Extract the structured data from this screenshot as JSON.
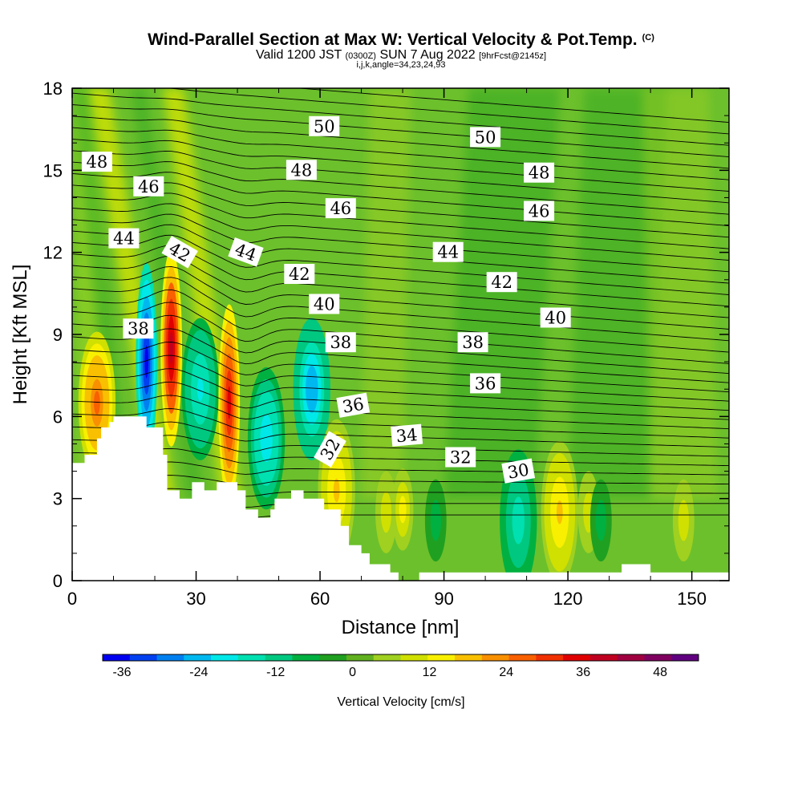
{
  "header": {
    "title": "Wind-Parallel Section at Max W: Vertical Velocity & Pot.Temp.",
    "title_mark": "(C)",
    "valid_prefix": "Valid 1200 JST",
    "valid_utc": "(0300Z)",
    "valid_date": "SUN 7 Aug 2022",
    "forecast": "[9hrFcst@2145z]",
    "indices": "i,j,k,angle=34,23,24,93"
  },
  "chart_data": {
    "type": "heatmap",
    "xlabel": "Distance [nm]",
    "ylabel": "Height [Kft MSL]",
    "xlim": [
      0,
      159
    ],
    "ylim": [
      0,
      18
    ],
    "xticks": [
      0,
      30,
      60,
      90,
      120,
      150
    ],
    "yticks": [
      0,
      3,
      6,
      9,
      12,
      15,
      18
    ],
    "colorbar": {
      "label": "Vertical Velocity [cm/s]",
      "ticks": [
        -36,
        -24,
        -12,
        0,
        12,
        24,
        36,
        48
      ],
      "min": -39,
      "max": 54,
      "colors": [
        "#0000f0",
        "#0040f0",
        "#0080f0",
        "#00b8f0",
        "#00e8e8",
        "#00e0b0",
        "#00c880",
        "#00b040",
        "#20a020",
        "#60b020",
        "#a0d020",
        "#d0e000",
        "#f8f000",
        "#f8c000",
        "#f89000",
        "#f86000",
        "#f03000",
        "#e00000",
        "#c00020",
        "#a00040",
        "#800060",
        "#600080"
      ]
    },
    "velocity_cells": [
      {
        "x": 6,
        "y": 6.5,
        "w": 26
      },
      {
        "x": 18,
        "y": 8,
        "w": -38
      },
      {
        "x": 24,
        "y": 8.5,
        "w": 40
      },
      {
        "x": 31,
        "y": 7,
        "w": -20
      },
      {
        "x": 38,
        "y": 6.5,
        "w": 36
      },
      {
        "x": 47,
        "y": 5.2,
        "w": -22
      },
      {
        "x": 58,
        "y": 7,
        "w": -26
      },
      {
        "x": 64,
        "y": 3.3,
        "w": 16
      },
      {
        "x": 76,
        "y": 2.5,
        "w": 10
      },
      {
        "x": 80,
        "y": 2.6,
        "w": 14
      },
      {
        "x": 88,
        "y": 2.2,
        "w": -8
      },
      {
        "x": 108,
        "y": 2.2,
        "w": -16
      },
      {
        "x": 118,
        "y": 2.5,
        "w": 18
      },
      {
        "x": 125,
        "y": 2.5,
        "w": 10
      },
      {
        "x": 128,
        "y": 2.2,
        "w": -8
      },
      {
        "x": 148,
        "y": 2.2,
        "w": 10
      }
    ],
    "terrain": {
      "x": [
        0,
        3,
        3,
        6,
        6,
        7,
        7,
        9,
        9,
        10,
        10,
        12,
        12,
        13,
        13,
        18,
        18,
        22,
        22,
        23,
        23,
        26,
        26,
        29,
        29,
        32,
        32,
        35,
        35,
        40,
        40,
        42,
        42,
        45,
        45,
        48,
        48,
        49,
        49,
        53,
        53,
        56,
        56,
        61,
        61,
        65,
        65,
        67,
        67,
        70,
        70,
        72,
        72,
        77,
        77,
        79,
        79,
        84,
        84,
        89,
        89,
        133,
        133,
        140,
        140,
        159
      ],
      "y": [
        4.3,
        4.3,
        4.6,
        4.6,
        5.2,
        5.2,
        5.6,
        5.6,
        5.8,
        5.8,
        6.0,
        6.0,
        6.0,
        6.0,
        6.0,
        6.0,
        5.6,
        5.6,
        4.6,
        4.6,
        3.3,
        3.3,
        3.0,
        3.0,
        3.6,
        3.6,
        3.3,
        3.3,
        3.6,
        3.6,
        3.3,
        3.3,
        2.6,
        2.6,
        2.3,
        2.3,
        2.6,
        2.6,
        3.0,
        3.0,
        3.3,
        3.3,
        3.0,
        3.0,
        2.6,
        2.6,
        2.0,
        2.0,
        1.3,
        1.3,
        1.0,
        1.0,
        0.6,
        0.6,
        0.3,
        0.3,
        0.0,
        0.0,
        0.3,
        0.3,
        0.3,
        0.3,
        0.6,
        0.6,
        0.3,
        0.3
      ]
    },
    "theta_levels": [
      30,
      32,
      34,
      36,
      38,
      40,
      42,
      44,
      46,
      48,
      50
    ],
    "contour_labels": [
      {
        "text": "48",
        "x": 6,
        "y": 15.3,
        "angle": 0
      },
      {
        "text": "46",
        "x": 18.5,
        "y": 14.4,
        "angle": 0
      },
      {
        "text": "44",
        "x": 12.5,
        "y": 12.5,
        "angle": 0
      },
      {
        "text": "42",
        "x": 26,
        "y": 12.0,
        "angle": 30
      },
      {
        "text": "44",
        "x": 42,
        "y": 12.0,
        "angle": 20
      },
      {
        "text": "38",
        "x": 16,
        "y": 9.2,
        "angle": 0
      },
      {
        "text": "50",
        "x": 61,
        "y": 16.6,
        "angle": 0
      },
      {
        "text": "48",
        "x": 55.5,
        "y": 15.0,
        "angle": 0
      },
      {
        "text": "46",
        "x": 65,
        "y": 13.6,
        "angle": 0
      },
      {
        "text": "42",
        "x": 55,
        "y": 11.2,
        "angle": 0
      },
      {
        "text": "40",
        "x": 61,
        "y": 10.1,
        "angle": 0
      },
      {
        "text": "38",
        "x": 65,
        "y": 8.7,
        "angle": 0
      },
      {
        "text": "36",
        "x": 68,
        "y": 6.4,
        "angle": -10
      },
      {
        "text": "32",
        "x": 62.5,
        "y": 4.8,
        "angle": -60
      },
      {
        "text": "50",
        "x": 100,
        "y": 16.2,
        "angle": 0
      },
      {
        "text": "48",
        "x": 113,
        "y": 14.9,
        "angle": 0
      },
      {
        "text": "46",
        "x": 113,
        "y": 13.5,
        "angle": 0
      },
      {
        "text": "44",
        "x": 91,
        "y": 12.0,
        "angle": 0
      },
      {
        "text": "42",
        "x": 104,
        "y": 10.9,
        "angle": 0
      },
      {
        "text": "40",
        "x": 117,
        "y": 9.6,
        "angle": 0
      },
      {
        "text": "38",
        "x": 97,
        "y": 8.7,
        "angle": 0
      },
      {
        "text": "36",
        "x": 100,
        "y": 7.2,
        "angle": 0
      },
      {
        "text": "34",
        "x": 81,
        "y": 5.3,
        "angle": -5
      },
      {
        "text": "32",
        "x": 94,
        "y": 4.5,
        "angle": 0
      },
      {
        "text": "30",
        "x": 108,
        "y": 4.0,
        "angle": -10
      }
    ]
  }
}
